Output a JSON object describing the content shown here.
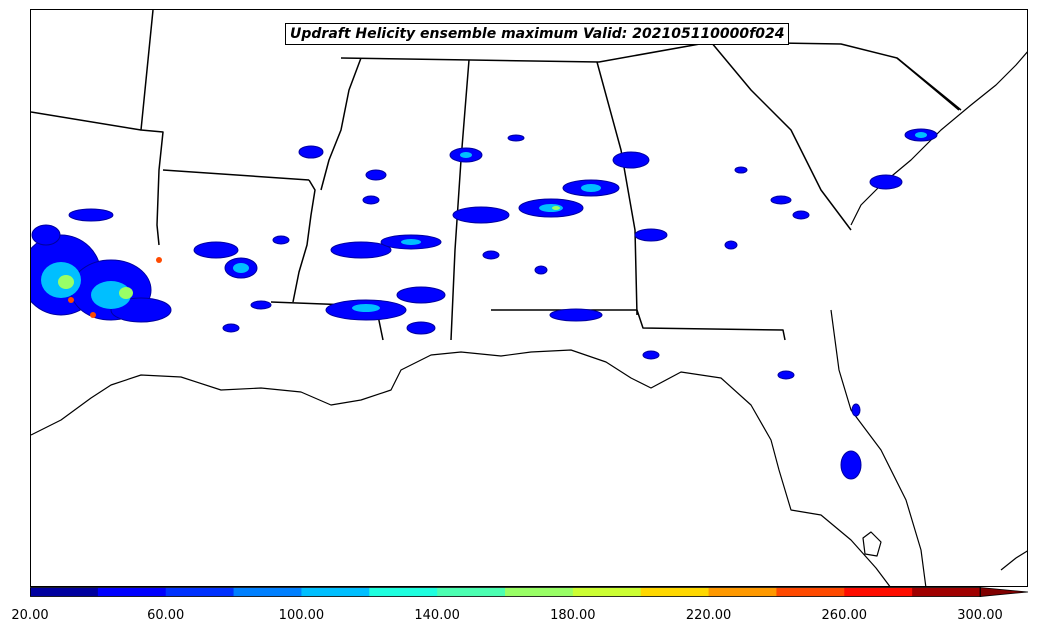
{
  "title": "Updraft Helicity ensemble maximum Valid: 202105110000f024",
  "colorbar": {
    "bins": [
      {
        "from": 20,
        "to": 40,
        "color": "#00009f"
      },
      {
        "from": 40,
        "to": 60,
        "color": "#0000ff"
      },
      {
        "from": 60,
        "to": 80,
        "color": "#0032ff"
      },
      {
        "from": 80,
        "to": 100,
        "color": "#0080ff"
      },
      {
        "from": 100,
        "to": 120,
        "color": "#00bfff"
      },
      {
        "from": 120,
        "to": 140,
        "color": "#1fffdf"
      },
      {
        "from": 140,
        "to": 160,
        "color": "#4cffb2"
      },
      {
        "from": 160,
        "to": 180,
        "color": "#99ff66"
      },
      {
        "from": 180,
        "to": 200,
        "color": "#ccff33"
      },
      {
        "from": 200,
        "to": 220,
        "color": "#ffd800"
      },
      {
        "from": 220,
        "to": 240,
        "color": "#ff9900"
      },
      {
        "from": 240,
        "to": 260,
        "color": "#ff4a00"
      },
      {
        "from": 260,
        "to": 280,
        "color": "#ff0d00"
      },
      {
        "from": 280,
        "to": 300,
        "color": "#a00000"
      }
    ],
    "extend_color": "#800000",
    "tick_values": [
      20,
      60,
      100,
      140,
      180,
      220,
      260,
      300
    ],
    "tick_labels": [
      "20.00",
      "60.00",
      "100.00",
      "140.00",
      "180.00",
      "220.00",
      "260.00",
      "300.00"
    ]
  }
}
